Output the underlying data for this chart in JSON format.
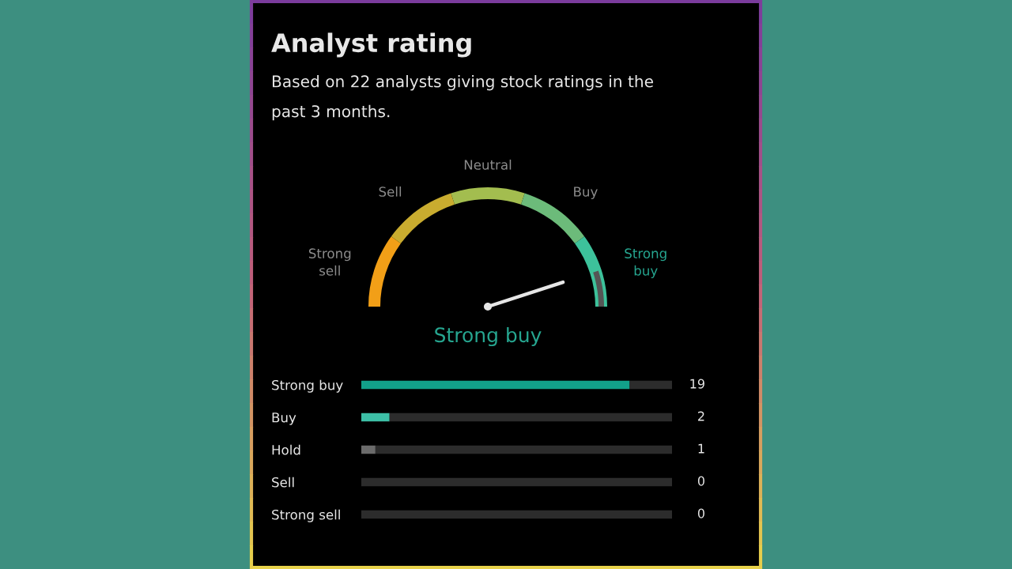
{
  "chart_data": [
    {
      "type": "donut",
      "title": "Analyst rating",
      "subtitle": "Based on 22 analysts giving stock ratings in the past 3 months.",
      "categories": [
        "Strong sell",
        "Sell",
        "Neutral",
        "Buy",
        "Strong buy"
      ],
      "values": [
        20,
        20,
        20,
        20,
        20
      ],
      "colors": [
        "#f29f17",
        "#c9ac2f",
        "#a3bd4f",
        "#6cbb7a",
        "#3dc29b"
      ],
      "needle": "Strong buy",
      "annotations": [
        "Strong buy"
      ]
    },
    {
      "type": "bar",
      "orientation": "horizontal",
      "stacked": true,
      "categories": [
        "Strong buy",
        "Buy",
        "Hold",
        "Sell",
        "Strong sell"
      ],
      "series": [
        {
          "colors": [
            "#12a18a",
            "#3dc0a7",
            "#6b6b6b",
            "#6b6b6b",
            "#6b6b6b"
          ],
          "values": [
            19,
            2,
            1,
            0,
            0
          ],
          "value_labels": [
            "19",
            "2",
            "1",
            "0",
            "0"
          ]
        },
        {
          "color": "#2c2c2c",
          "values": [
            3,
            20,
            21,
            22,
            22
          ]
        }
      ],
      "xlim": [
        0,
        22
      ],
      "tick_labels": "y"
    }
  ]
}
